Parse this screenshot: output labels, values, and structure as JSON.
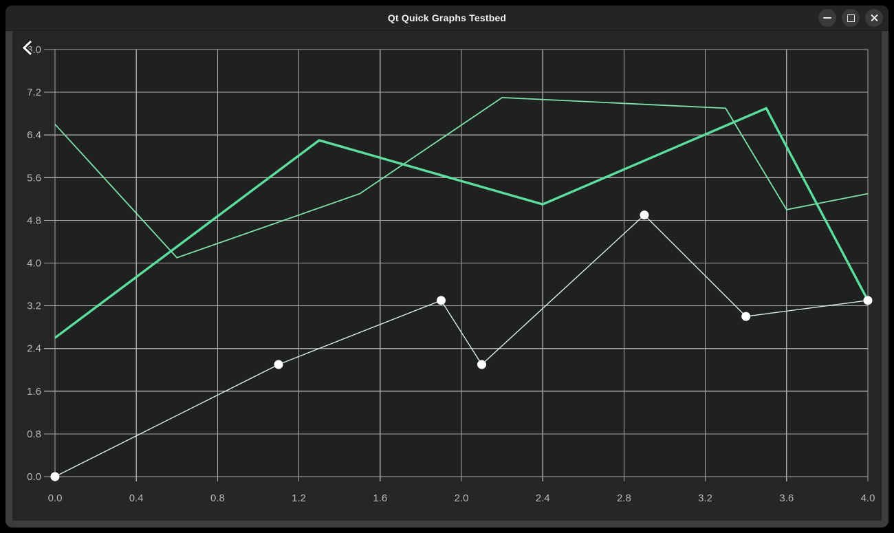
{
  "window": {
    "title": "Qt Quick Graphs Testbed",
    "controls": [
      {
        "icon": "minimize-icon"
      },
      {
        "icon": "maximize-icon"
      },
      {
        "icon": "close-icon"
      }
    ]
  },
  "chart_data": {
    "type": "line",
    "title": "",
    "xlabel": "",
    "ylabel": "",
    "xlim": [
      0.0,
      4.0
    ],
    "ylim": [
      0.0,
      8.0
    ],
    "x_ticks": [
      "0.0",
      "0.4",
      "0.8",
      "1.2",
      "1.6",
      "2.0",
      "2.4",
      "2.8",
      "3.2",
      "3.6",
      "4.0"
    ],
    "y_ticks": [
      "8.0",
      "7.2",
      "6.4",
      "5.6",
      "4.8",
      "4.0",
      "3.2",
      "2.4",
      "1.6",
      "0.8",
      "0.0"
    ],
    "grid": true,
    "legend": "none",
    "grid_color": "#A8A8A8",
    "label_color": "#B5B7BB",
    "plot_bg": "#1F2020",
    "series": [
      {
        "name": "green-thin-line",
        "type": "line",
        "color": "#7FE3AC",
        "width": 1.8,
        "points": [
          [
            0.0,
            6.6
          ],
          [
            0.6,
            4.1
          ],
          [
            1.5,
            5.3
          ],
          [
            2.2,
            7.1
          ],
          [
            3.3,
            6.9
          ],
          [
            3.6,
            5.0
          ],
          [
            4.0,
            5.3
          ]
        ]
      },
      {
        "name": "green-thick-line",
        "type": "line",
        "color": "#5CDF9E",
        "width": 3.4,
        "points": [
          [
            0.0,
            2.6
          ],
          [
            1.3,
            6.3
          ],
          [
            2.4,
            5.1
          ],
          [
            3.5,
            6.9
          ],
          [
            4.0,
            3.3
          ]
        ]
      },
      {
        "name": "white-scatter-series",
        "type": "scatter-line",
        "color": "#DCEDE4",
        "width": 1.4,
        "marker_color": "#FFFFFF",
        "marker_radius": 6.5,
        "points": [
          [
            0.0,
            0.0
          ],
          [
            1.1,
            2.1
          ],
          [
            1.9,
            3.3
          ],
          [
            2.1,
            2.1
          ],
          [
            2.9,
            4.9
          ],
          [
            3.4,
            3.0
          ],
          [
            4.0,
            3.3
          ]
        ]
      }
    ]
  },
  "cursor": {
    "shape": "arrow-cursor"
  }
}
